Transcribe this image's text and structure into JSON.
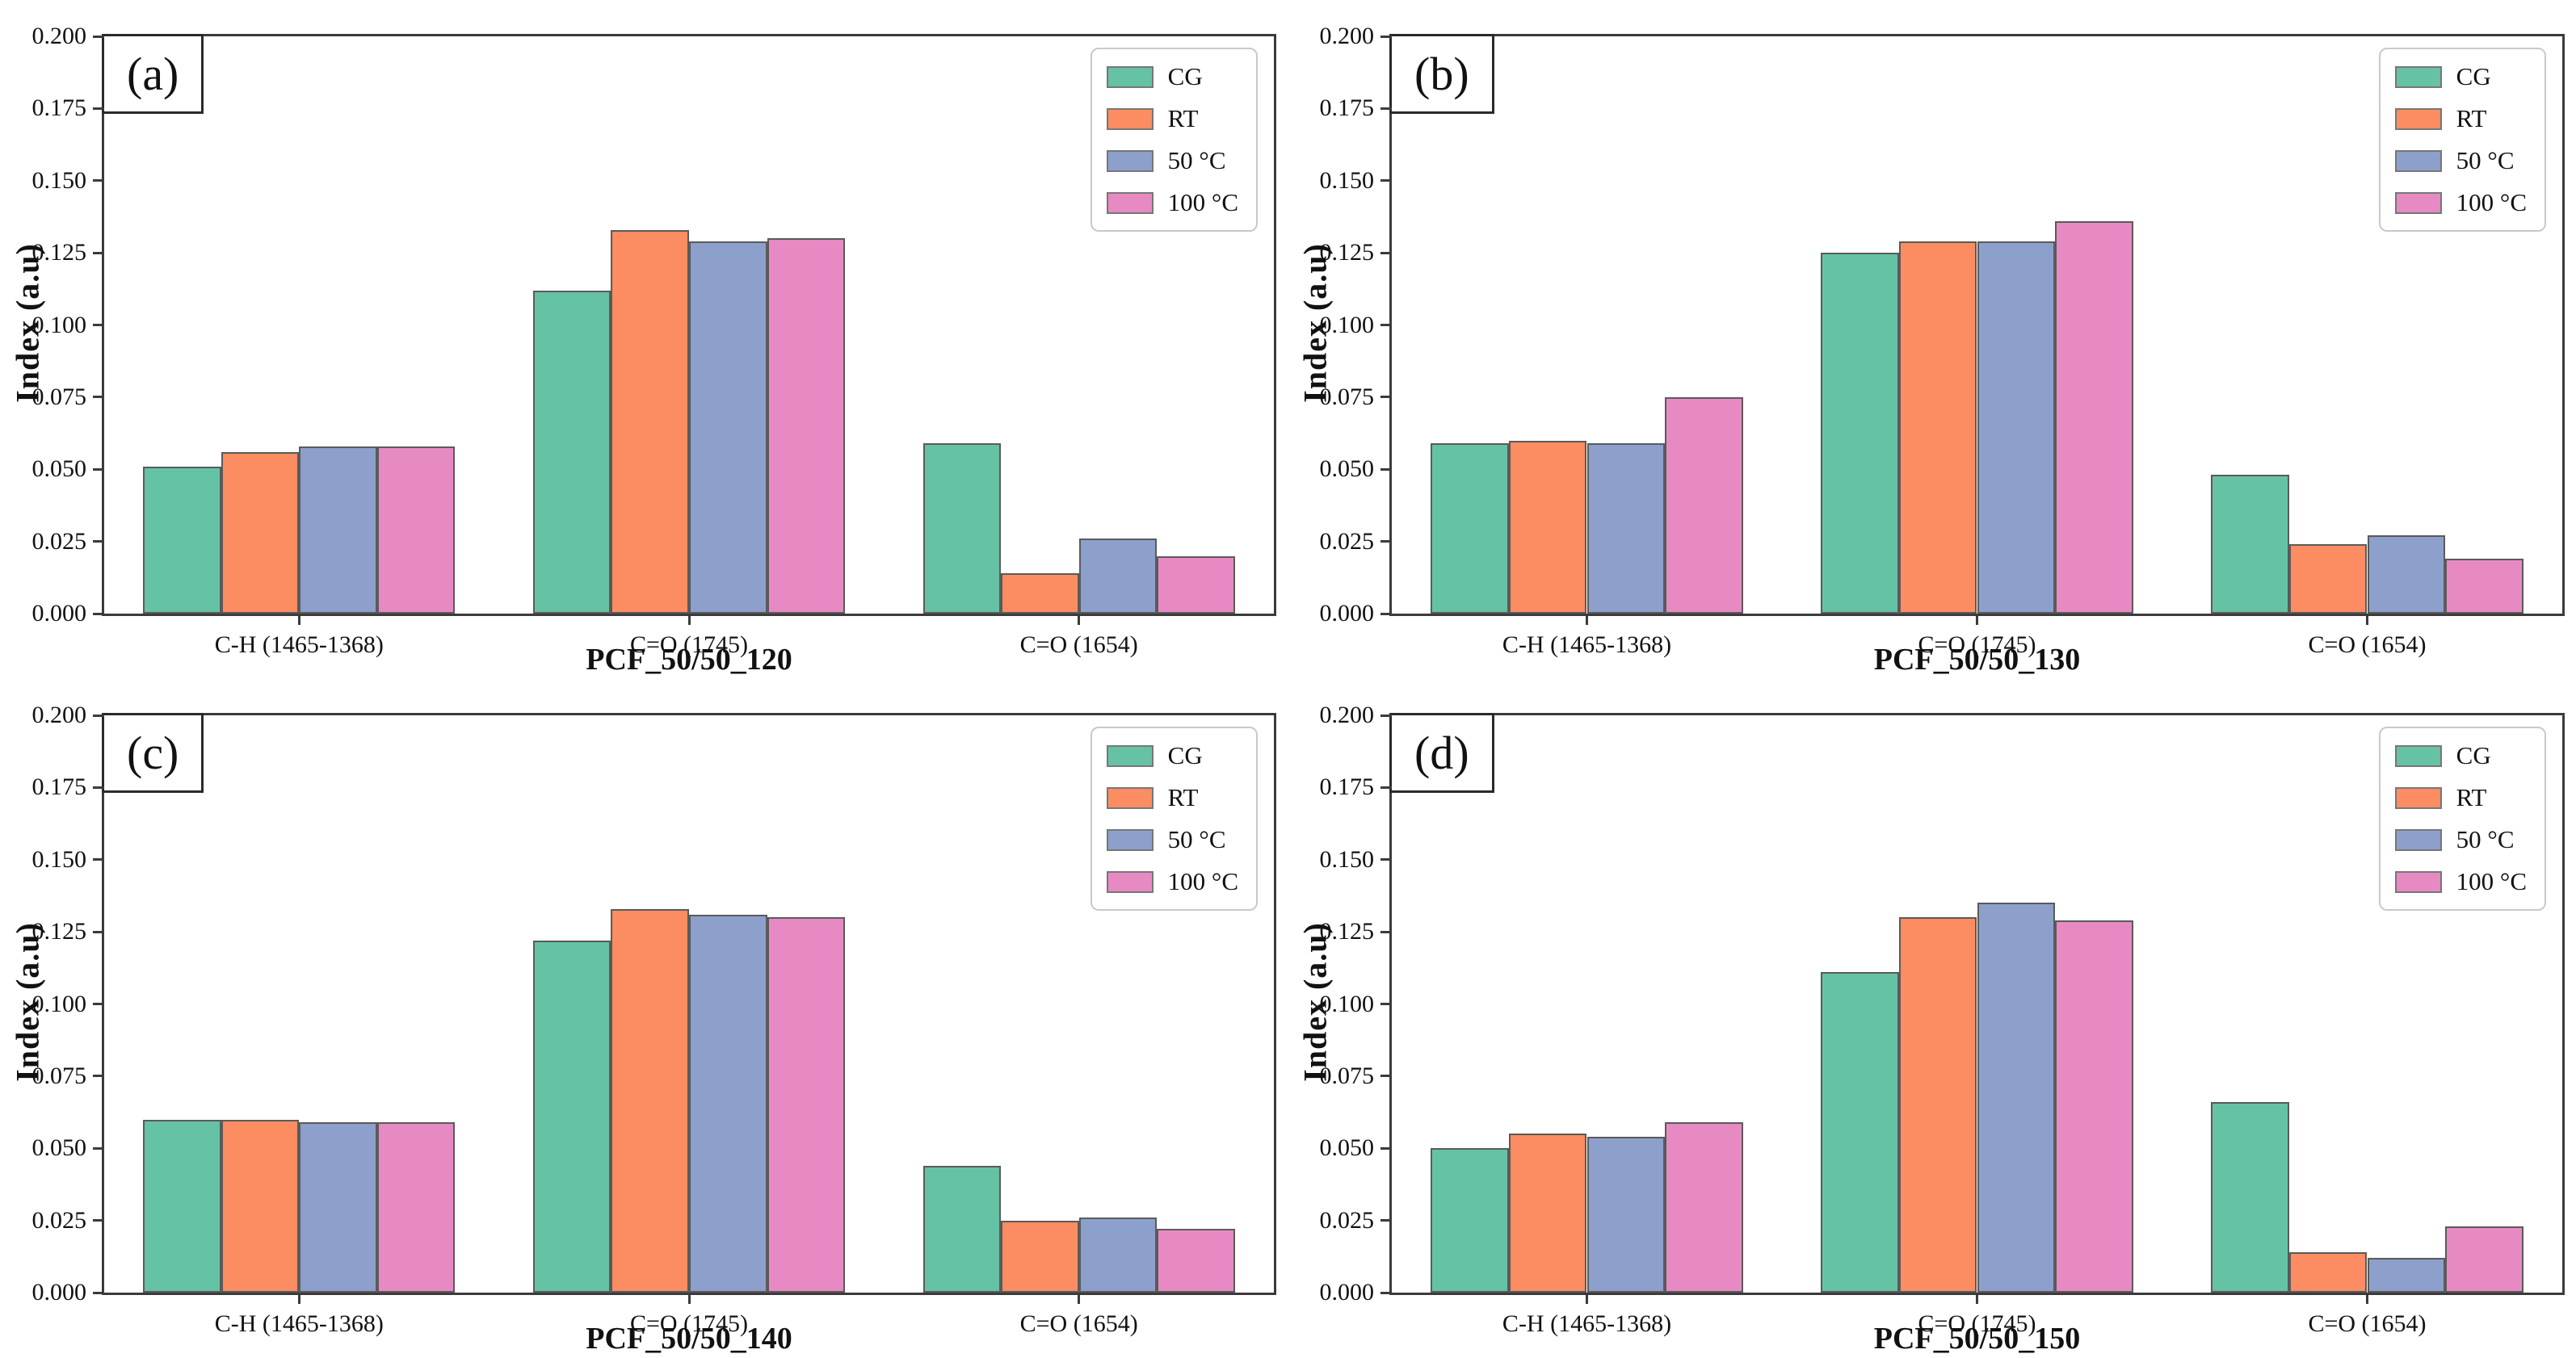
{
  "figure": {
    "background": "#ffffff",
    "axis_color": "#3b3b3b",
    "bar_edge_color": "#5a5a5a",
    "legend_border_color": "#c9c9c9"
  },
  "chart_data": [
    {
      "type": "bar",
      "panel_label": "(a)",
      "xlabel": "PCF_50/50_120",
      "ylabel": "Index (a.u)",
      "categories": [
        "C-H (1465-1368)",
        "C=O (1745)",
        "C=O (1654)"
      ],
      "series": [
        {
          "name": "CG",
          "color": "#66c2a5",
          "values": [
            0.051,
            0.112,
            0.059
          ]
        },
        {
          "name": "RT",
          "color": "#fc8d62",
          "values": [
            0.056,
            0.133,
            0.014
          ]
        },
        {
          "name": "50 °C",
          "color": "#8da0cb",
          "values": [
            0.058,
            0.129,
            0.026
          ]
        },
        {
          "name": "100 °C",
          "color": "#e78ac3",
          "values": [
            0.058,
            0.13,
            0.02
          ]
        }
      ],
      "ylim": [
        0,
        0.2
      ],
      "yticks": [
        "0.000",
        "0.025",
        "0.050",
        "0.075",
        "0.100",
        "0.125",
        "0.150",
        "0.175",
        "0.200"
      ],
      "legend_position": "top-right",
      "grid": false
    },
    {
      "type": "bar",
      "panel_label": "(b)",
      "xlabel": "PCF_50/50_130",
      "ylabel": "Index (a.u)",
      "categories": [
        "C-H (1465-1368)",
        "C=O (1745)",
        "C=O (1654)"
      ],
      "series": [
        {
          "name": "CG",
          "color": "#66c2a5",
          "values": [
            0.059,
            0.125,
            0.048
          ]
        },
        {
          "name": "RT",
          "color": "#fc8d62",
          "values": [
            0.06,
            0.129,
            0.024
          ]
        },
        {
          "name": "50 °C",
          "color": "#8da0cb",
          "values": [
            0.059,
            0.129,
            0.027
          ]
        },
        {
          "name": "100 °C",
          "color": "#e78ac3",
          "values": [
            0.075,
            0.136,
            0.019
          ]
        }
      ],
      "ylim": [
        0,
        0.2
      ],
      "yticks": [
        "0.000",
        "0.025",
        "0.050",
        "0.075",
        "0.100",
        "0.125",
        "0.150",
        "0.175",
        "0.200"
      ],
      "legend_position": "top-right",
      "grid": false
    },
    {
      "type": "bar",
      "panel_label": "(c)",
      "xlabel": "PCF_50/50_140",
      "ylabel": "Index (a.u)",
      "categories": [
        "C-H (1465-1368)",
        "C=O (1745)",
        "C=O (1654)"
      ],
      "series": [
        {
          "name": "CG",
          "color": "#66c2a5",
          "values": [
            0.06,
            0.122,
            0.044
          ]
        },
        {
          "name": "RT",
          "color": "#fc8d62",
          "values": [
            0.06,
            0.133,
            0.025
          ]
        },
        {
          "name": "50 °C",
          "color": "#8da0cb",
          "values": [
            0.059,
            0.131,
            0.026
          ]
        },
        {
          "name": "100 °C",
          "color": "#e78ac3",
          "values": [
            0.059,
            0.13,
            0.022
          ]
        }
      ],
      "ylim": [
        0,
        0.2
      ],
      "yticks": [
        "0.000",
        "0.025",
        "0.050",
        "0.075",
        "0.100",
        "0.125",
        "0.150",
        "0.175",
        "0.200"
      ],
      "legend_position": "top-right",
      "grid": false
    },
    {
      "type": "bar",
      "panel_label": "(d)",
      "xlabel": "PCF_50/50_150",
      "ylabel": "Index (a.u)",
      "categories": [
        "C-H (1465-1368)",
        "C=O (1745)",
        "C=O (1654)"
      ],
      "series": [
        {
          "name": "CG",
          "color": "#66c2a5",
          "values": [
            0.05,
            0.111,
            0.066
          ]
        },
        {
          "name": "RT",
          "color": "#fc8d62",
          "values": [
            0.055,
            0.13,
            0.014
          ]
        },
        {
          "name": "50 °C",
          "color": "#8da0cb",
          "values": [
            0.054,
            0.135,
            0.012
          ]
        },
        {
          "name": "100 °C",
          "color": "#e78ac3",
          "values": [
            0.059,
            0.129,
            0.023
          ]
        }
      ],
      "ylim": [
        0,
        0.2
      ],
      "yticks": [
        "0.000",
        "0.025",
        "0.050",
        "0.075",
        "0.100",
        "0.125",
        "0.150",
        "0.175",
        "0.200"
      ],
      "legend_position": "top-right",
      "grid": false
    }
  ]
}
